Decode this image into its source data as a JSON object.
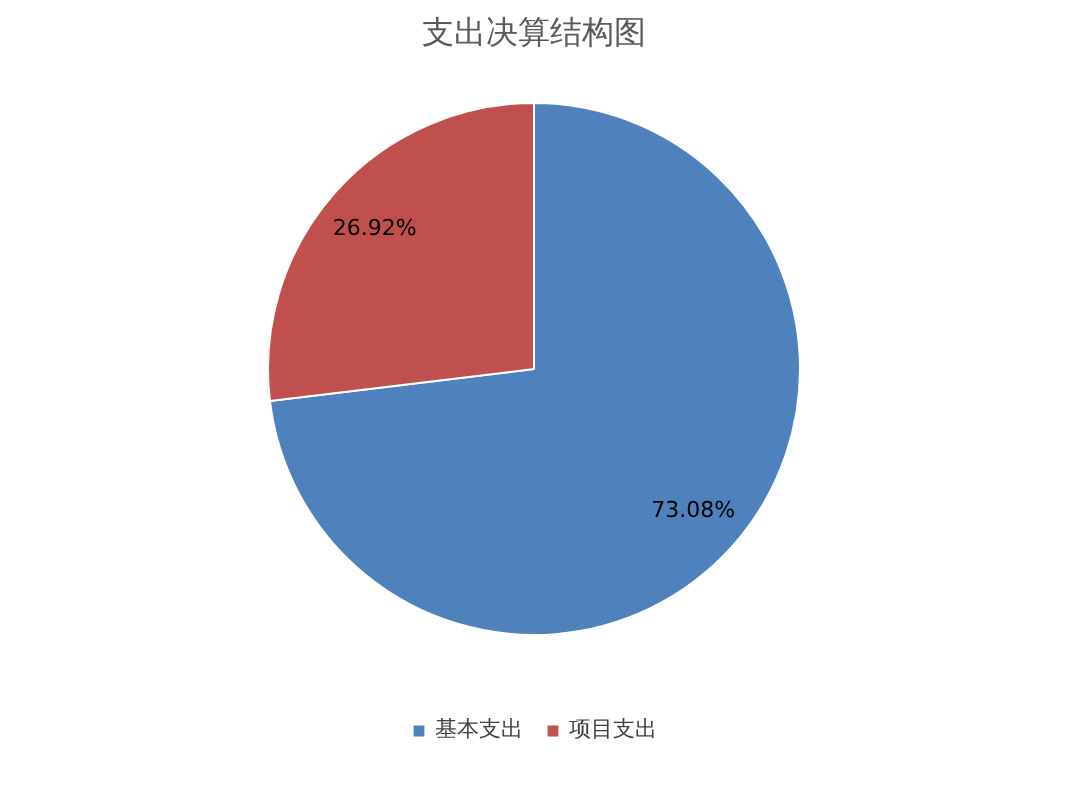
{
  "chart_data": {
    "type": "pie",
    "title": "支出决算结构图",
    "categories": [
      "基本支出",
      "项目支出"
    ],
    "values": [
      73.08,
      26.92
    ],
    "colors": [
      "#4f81bd",
      "#c0504d"
    ],
    "value_labels": [
      "73.08%",
      "26.92%"
    ],
    "legend": "bottom"
  }
}
